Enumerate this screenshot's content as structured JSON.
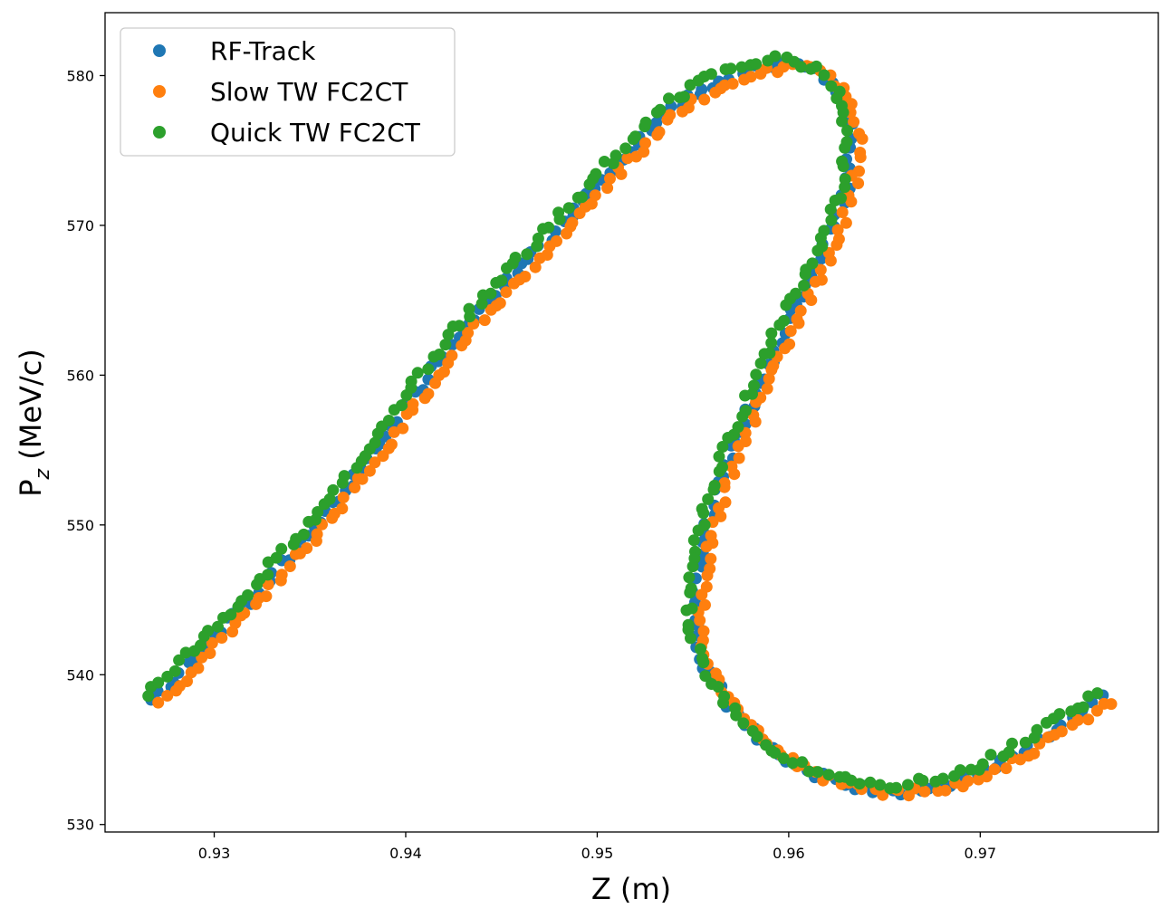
{
  "chart_data": {
    "type": "scatter",
    "title": "",
    "xlabel": "Z (m)",
    "ylabel_main": "P",
    "ylabel_sub": "z",
    "ylabel_rest": " (MeV/c)",
    "xlim": [
      0.9243,
      0.9793
    ],
    "ylim": [
      529.5,
      584.2
    ],
    "xticks": [
      0.93,
      0.94,
      0.95,
      0.96,
      0.97
    ],
    "xtick_labels": [
      "0.93",
      "0.94",
      "0.95",
      "0.96",
      "0.97"
    ],
    "yticks": [
      530,
      540,
      550,
      560,
      570,
      580
    ],
    "ytick_labels": [
      "530",
      "540",
      "550",
      "560",
      "570",
      "580"
    ],
    "grid": false,
    "legend_position": "top-left",
    "curve": {
      "x": [
        0.9267,
        0.9285,
        0.93,
        0.932,
        0.934,
        0.936,
        0.938,
        0.94,
        0.942,
        0.944,
        0.946,
        0.948,
        0.95,
        0.952,
        0.954,
        0.956,
        0.958,
        0.96,
        0.9615,
        0.9628,
        0.9633,
        0.963,
        0.962,
        0.961,
        0.96,
        0.959,
        0.958,
        0.957,
        0.9562,
        0.9556,
        0.9552,
        0.955,
        0.9553,
        0.956,
        0.957,
        0.958,
        0.959,
        0.96,
        0.961,
        0.962,
        0.963,
        0.9645,
        0.966,
        0.968,
        0.97,
        0.972,
        0.974,
        0.9767
      ],
      "y": [
        538.3,
        540.5,
        542.7,
        545.3,
        548.2,
        551.0,
        554.5,
        558.0,
        561.5,
        564.6,
        567.3,
        569.9,
        572.8,
        575.5,
        578.0,
        579.6,
        580.5,
        580.9,
        580.4,
        578.8,
        576.0,
        572.3,
        569.0,
        566.2,
        563.7,
        561.0,
        558.0,
        555.0,
        552.0,
        549.3,
        546.5,
        544.0,
        541.8,
        539.8,
        538.0,
        536.5,
        535.3,
        534.3,
        533.7,
        533.2,
        532.8,
        532.5,
        532.4,
        532.7,
        533.5,
        535.0,
        536.5,
        538.7
      ]
    },
    "series": [
      {
        "name": "RF-Track",
        "color": "#1f77b4",
        "dx": 0.0,
        "dy": -0.15,
        "count": 210,
        "seed": 11
      },
      {
        "name": "Slow TW FC2CT",
        "color": "#ff7f0e",
        "dx": 0.00035,
        "dy": -0.3,
        "count": 230,
        "seed": 23
      },
      {
        "name": "Quick TW FC2CT",
        "color": "#2ca02c",
        "dx": -0.00025,
        "dy": 0.25,
        "count": 230,
        "seed": 37
      }
    ]
  }
}
